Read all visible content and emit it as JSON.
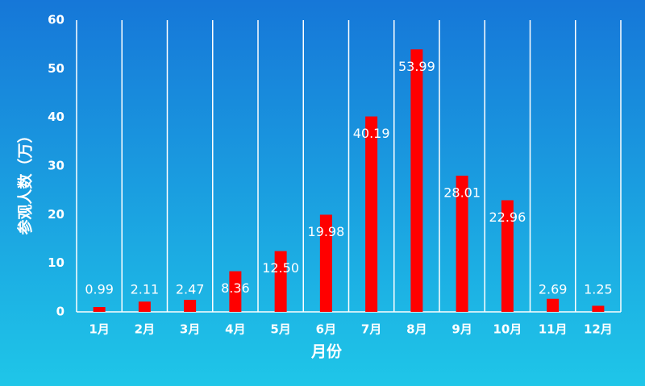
{
  "chart_data": {
    "type": "bar",
    "x_label": "月份",
    "y_label": "参观人数（万）",
    "categories": [
      "1月",
      "2月",
      "3月",
      "4月",
      "5月",
      "6月",
      "7月",
      "8月",
      "9月",
      "10月",
      "11月",
      "12月"
    ],
    "values": [
      0.99,
      2.11,
      2.47,
      8.36,
      12.5,
      19.98,
      40.19,
      53.99,
      28.01,
      22.96,
      2.69,
      1.25
    ],
    "value_labels": [
      "0.99",
      "2.11",
      "2.47",
      "8.36",
      "12.50",
      "19.98",
      "40.19",
      "53.99",
      "28.01",
      "22.96",
      "2.69",
      "1.25"
    ],
    "color": "#ff0000",
    "ylim": [
      0,
      60
    ],
    "yticks": [
      0,
      10,
      20,
      30,
      40,
      50,
      60
    ]
  }
}
